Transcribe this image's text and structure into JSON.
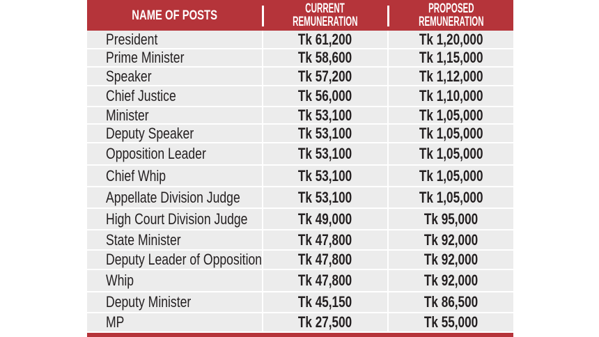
{
  "header": {
    "col_name": "NAME OF POSTS",
    "col_current": [
      "CURRENT",
      "REMUNERATION"
    ],
    "col_proposed": [
      "PROPOSED",
      "REMUNERATION"
    ]
  },
  "colors": {
    "accent": "#b5343a",
    "row_bg": "#ececec"
  },
  "rows": [
    {
      "post": "President",
      "current": "Tk 61,200",
      "proposed": "Tk 1,20,000"
    },
    {
      "post": "Prime Minister",
      "current": "Tk 58,600",
      "proposed": "Tk 1,15,000"
    },
    {
      "post": "Speaker",
      "current": "Tk 57,200",
      "proposed": "Tk 1,12,000"
    },
    {
      "post": "Chief Justice",
      "current": "Tk 56,000",
      "proposed": "Tk 1,10,000"
    },
    {
      "post": "Minister",
      "current": "Tk 53,100",
      "proposed": "Tk 1,05,000"
    },
    {
      "post": "Deputy Speaker",
      "current": "Tk 53,100",
      "proposed": "Tk 1,05,000"
    },
    {
      "post": "Opposition Leader",
      "current": "Tk 53,100",
      "proposed": "Tk 1,05,000"
    },
    {
      "post": "Chief Whip",
      "current": "Tk 53,100",
      "proposed": "Tk 1,05,000"
    },
    {
      "post": "Appellate Division Judge",
      "current": "Tk 53,100",
      "proposed": "Tk 1,05,000"
    },
    {
      "post": "High Court Division Judge",
      "current": "Tk 49,000",
      "proposed": "Tk 95,000"
    },
    {
      "post": "State Minister",
      "current": "Tk 47,800",
      "proposed": "Tk 92,000"
    },
    {
      "post": "Deputy Leader of Opposition",
      "current": "Tk 47,800",
      "proposed": "Tk 92,000"
    },
    {
      "post": "Whip",
      "current": "Tk 47,800",
      "proposed": "Tk 92,000"
    },
    {
      "post": "Deputy Minister",
      "current": "Tk 45,150",
      "proposed": "Tk 86,500"
    },
    {
      "post": "MP",
      "current": "Tk 27,500",
      "proposed": "Tk 55,000"
    }
  ]
}
